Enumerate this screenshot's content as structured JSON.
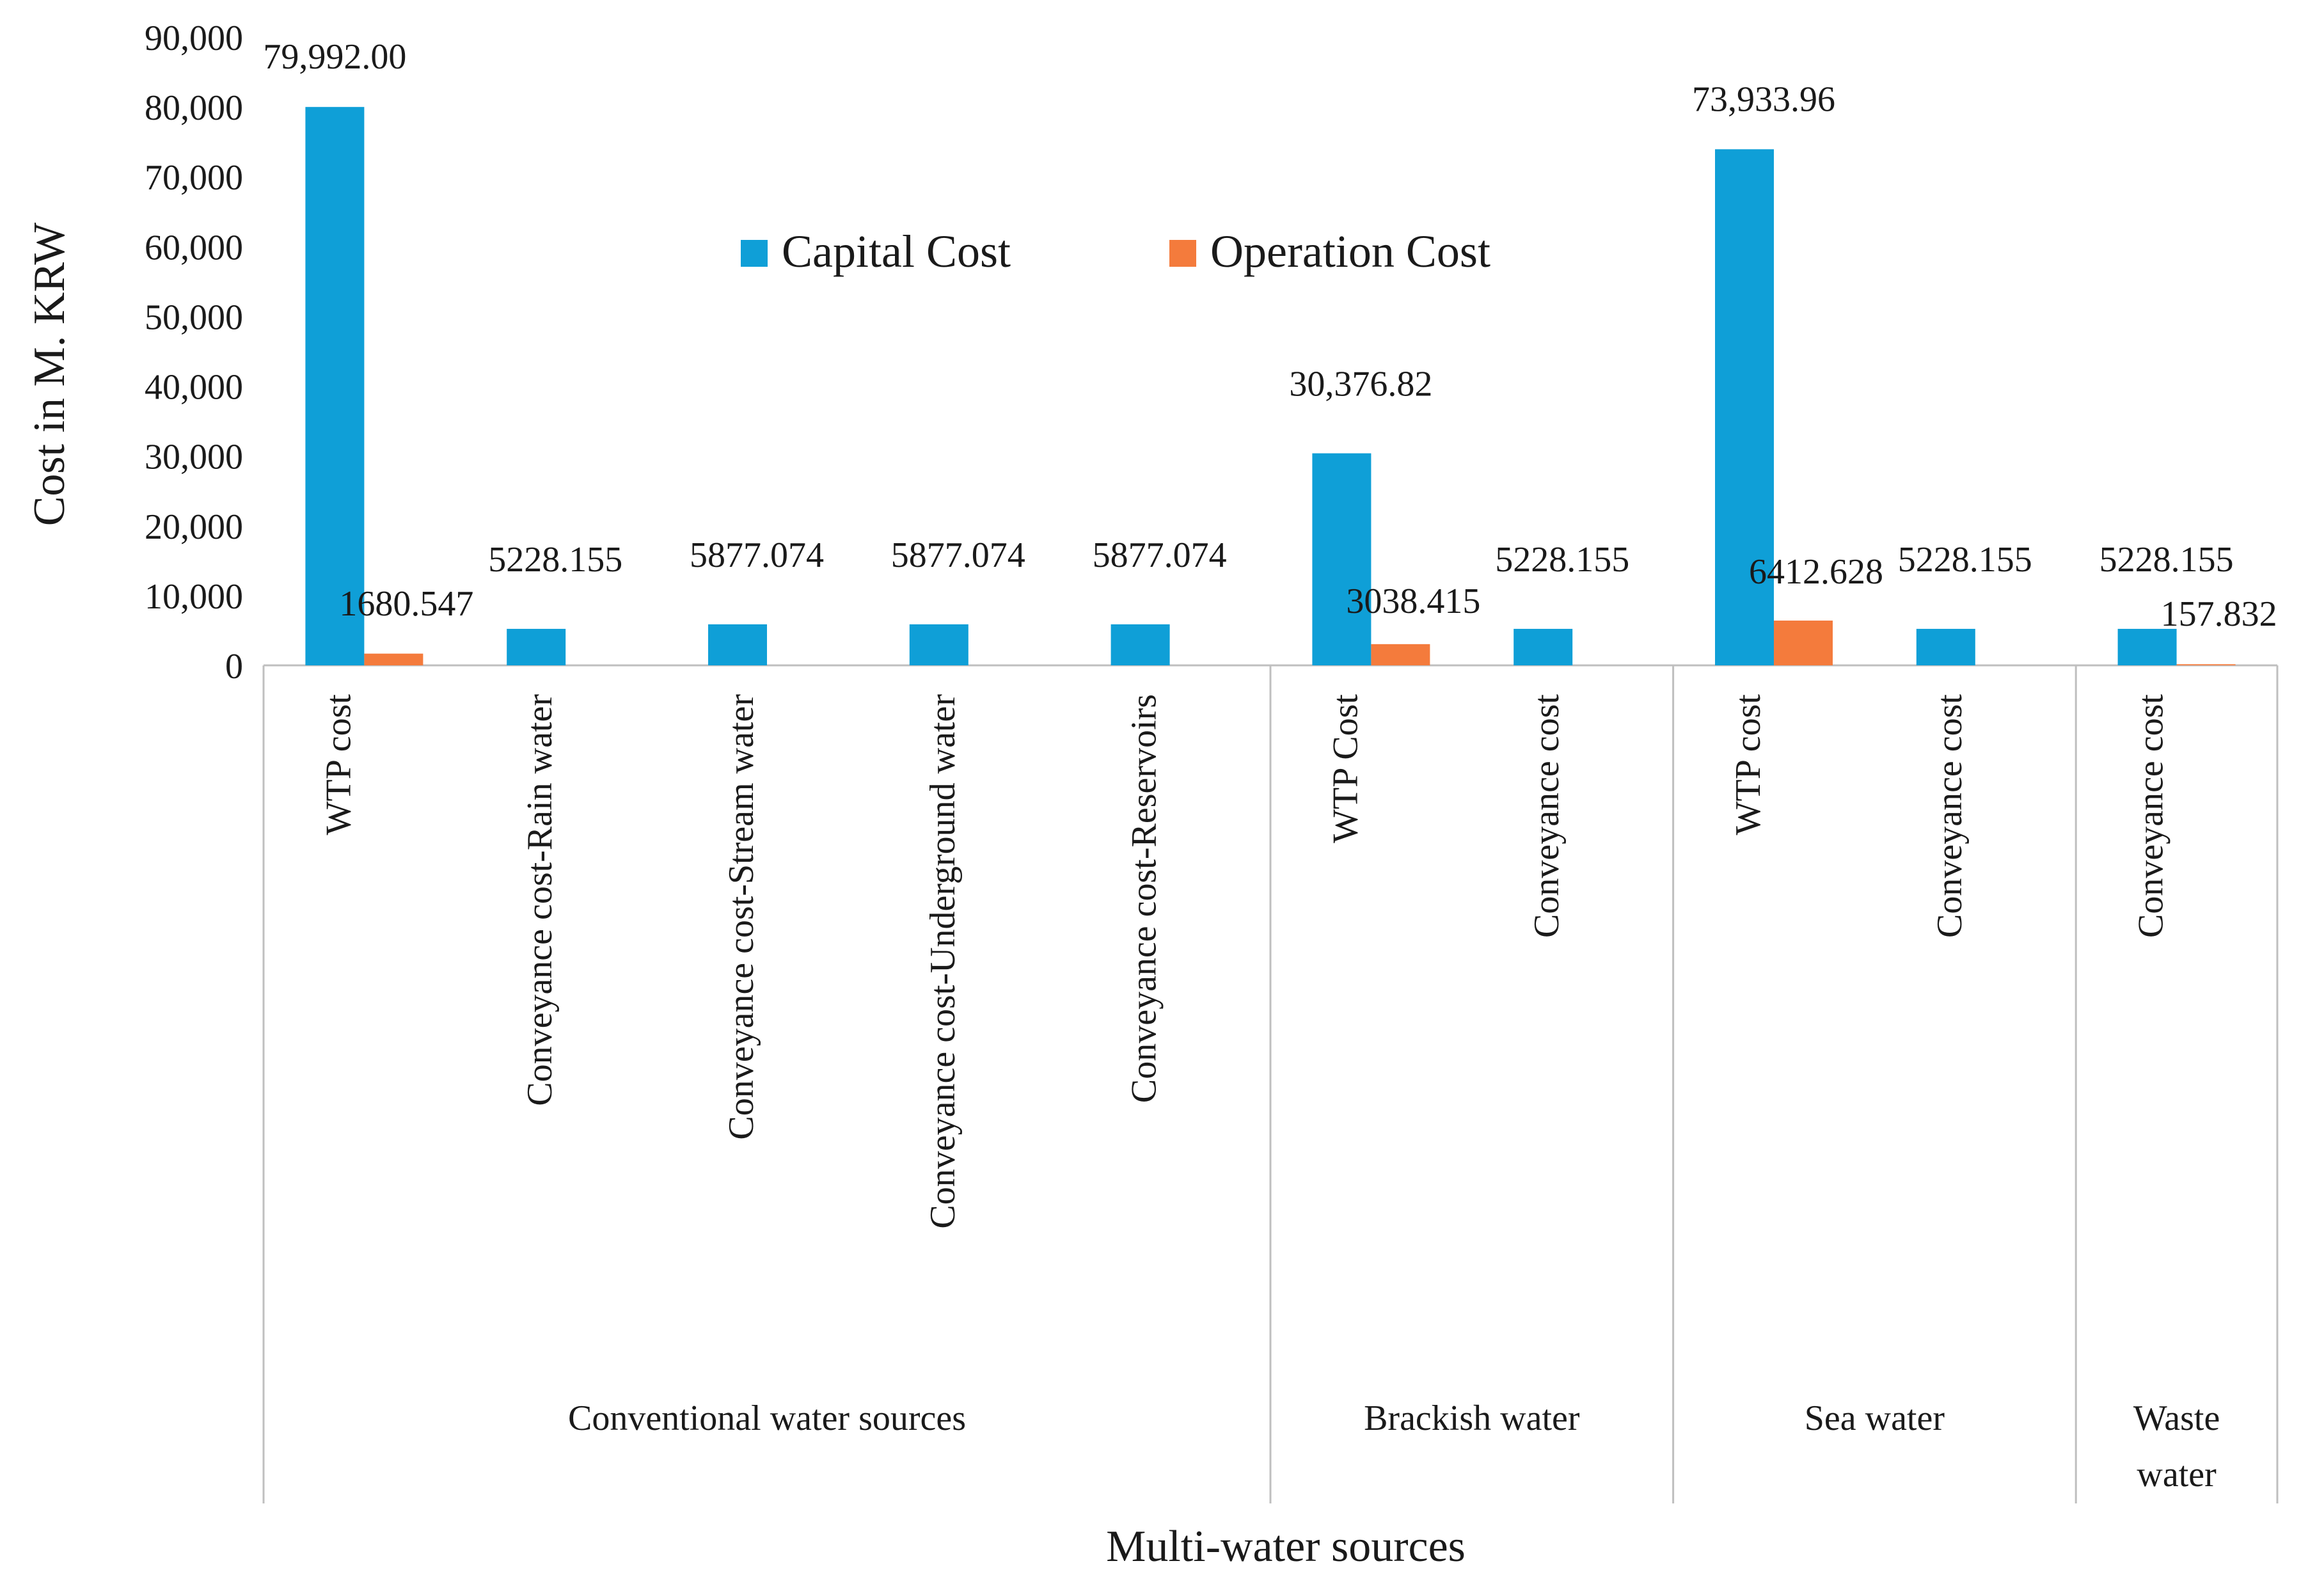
{
  "chart_data": {
    "type": "bar",
    "title": "",
    "xlabel": "Multi-water sources",
    "ylabel": "Cost in M. KRW",
    "ylim": [
      0,
      90000
    ],
    "yticks": [
      0,
      10000,
      20000,
      30000,
      40000,
      50000,
      60000,
      70000,
      80000,
      90000
    ],
    "ytick_labels": [
      "0",
      "10,000",
      "20,000",
      "30,000",
      "40,000",
      "50,000",
      "60,000",
      "70,000",
      "80,000",
      "90,000"
    ],
    "legend_position": "top-center",
    "grid": false,
    "colors": {
      "capital": "#0f9fd7",
      "operation": "#f47b3c"
    },
    "categories": [
      "WTP cost",
      "Conveyance cost-Rain water",
      "Conveyance cost-Stream water",
      "Conveyance cost-Underground water",
      "Conveyance cost-Reservoirs",
      "WTP Cost",
      "Conveyance cost",
      "WTP cost",
      "Conveyance cost",
      "Conveyance cost"
    ],
    "groups": [
      {
        "label": "Conventional water sources",
        "start": 0,
        "count": 5
      },
      {
        "label": "Brackish water",
        "start": 5,
        "count": 2
      },
      {
        "label": "Sea water",
        "start": 7,
        "count": 2
      },
      {
        "label": "Waste\nwater",
        "start": 9,
        "count": 1
      }
    ],
    "series": [
      {
        "name": "Capital Cost",
        "values": [
          79992.0,
          5228.155,
          5877.074,
          5877.074,
          5877.074,
          30376.82,
          5228.155,
          73933.96,
          5228.155,
          5228.155
        ],
        "labels": [
          "79,992.00",
          "5228.155",
          "5877.074",
          "5877.074",
          "5877.074",
          "30,376.82",
          "5228.155",
          "73,933.96",
          "5228.155",
          "5228.155"
        ]
      },
      {
        "name": "Operation Cost",
        "values": [
          1680.547,
          null,
          null,
          null,
          null,
          3038.415,
          null,
          6412.628,
          null,
          157.832
        ],
        "labels": [
          "1680.547",
          "",
          "",
          "",
          "",
          "3038.415",
          "",
          "6412.628",
          "",
          "157.832"
        ]
      }
    ]
  }
}
